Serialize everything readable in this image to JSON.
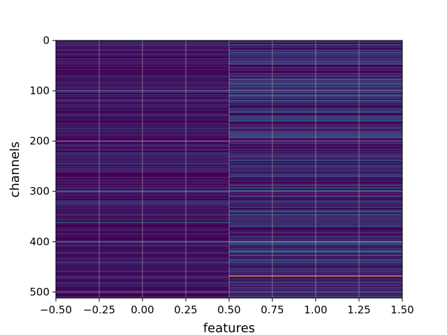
{
  "chart_data": {
    "type": "heatmap",
    "title": "",
    "xlabel": "features",
    "ylabel": "channels",
    "xlim": [
      -0.5,
      1.5
    ],
    "ylim": [
      512,
      0
    ],
    "y_inverted": true,
    "columns": [
      0,
      1
    ],
    "rows": 512,
    "colormap": "viridis",
    "grid": true,
    "x_ticks": [
      -0.5,
      -0.25,
      0.0,
      0.25,
      0.5,
      0.75,
      1.0,
      1.25,
      1.5
    ],
    "x_tick_labels": [
      "−0.50",
      "−0.25",
      "0.00",
      "0.25",
      "0.50",
      "0.75",
      "1.00",
      "1.25",
      "1.50"
    ],
    "y_ticks": [
      0,
      100,
      200,
      300,
      400,
      500
    ],
    "y_tick_labels": [
      "0",
      "100",
      "200",
      "300",
      "400",
      "500"
    ],
    "colors": {
      "background": "#440154",
      "stripe_low": "#3b528b",
      "stripe_mid": "#21918c",
      "stripe_high": "#5ec962",
      "stripe_max": "#fde725"
    },
    "highlights": [
      {
        "column": 0,
        "row": 361,
        "level": 0.55
      },
      {
        "column": 0,
        "row": 200,
        "level": 0.3
      },
      {
        "column": 1,
        "row": 468,
        "level": 1.0
      },
      {
        "column": 1,
        "row": 362,
        "level": 0.55
      },
      {
        "column": 1,
        "row": 418,
        "level": 0.55
      },
      {
        "column": 1,
        "row": 293,
        "level": 0.5
      },
      {
        "column": 1,
        "row": 110,
        "level": 0.5
      },
      {
        "column": 1,
        "row": 192,
        "level": 0.45
      },
      {
        "column": 1,
        "row": 152,
        "level": 0.42
      },
      {
        "column": 1,
        "row": 237,
        "level": 0.4
      },
      {
        "column": 1,
        "row": 225,
        "level": 0.38
      },
      {
        "column": 1,
        "row": 337,
        "level": 0.38
      },
      {
        "column": 1,
        "row": 20,
        "level": 0.35
      },
      {
        "column": 1,
        "row": 80,
        "level": 0.35
      }
    ]
  }
}
